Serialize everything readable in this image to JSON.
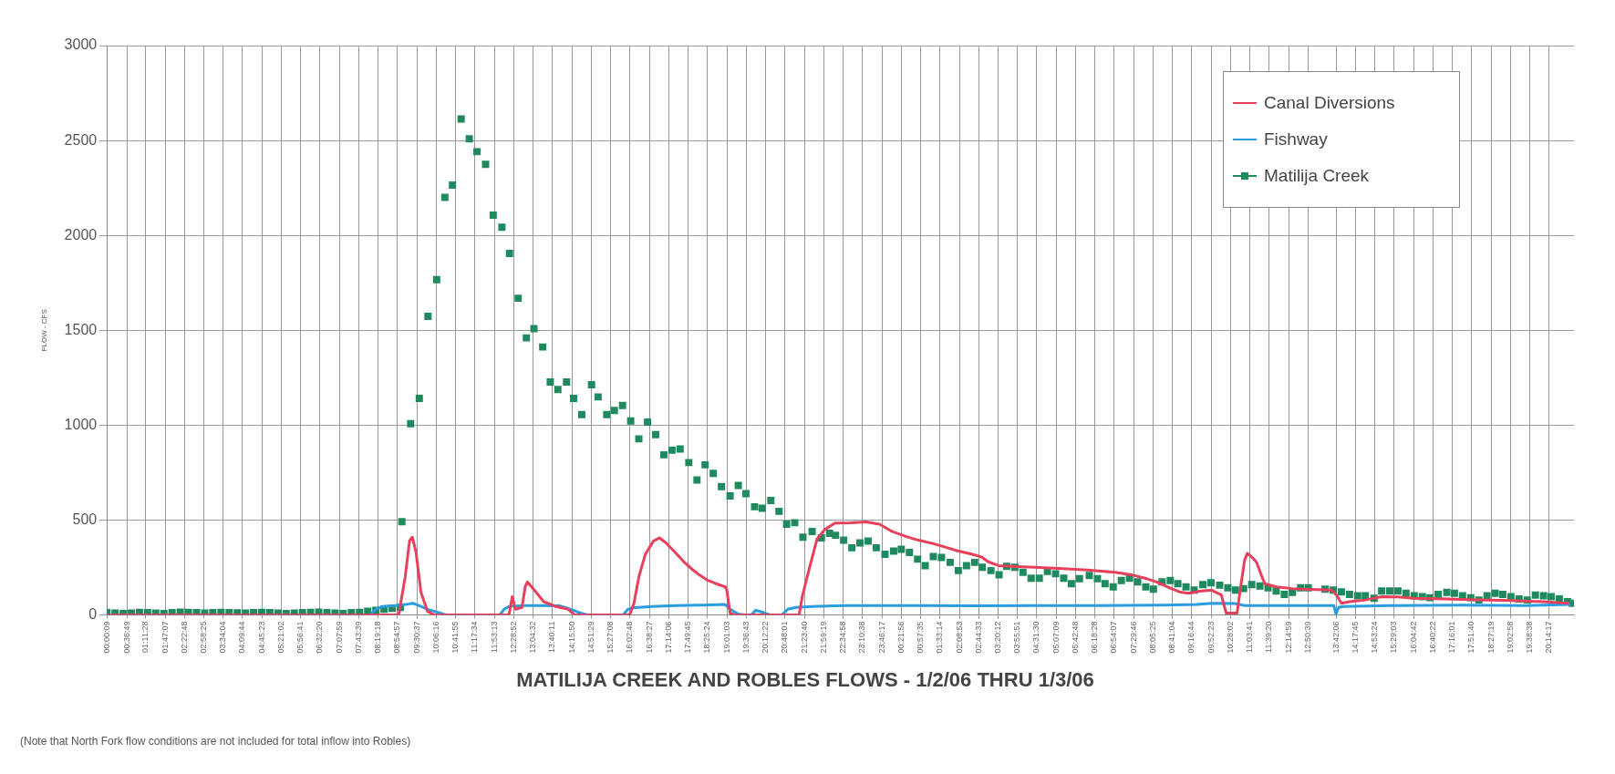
{
  "chart_data": {
    "type": "line",
    "title": "MATILIJA CREEK AND ROBLES FLOWS - 1/2/06 THRU 1/3/06",
    "ylabel": "FLOW - CFS",
    "annotations": [
      "(Note that North Fork flow conditions are not included for total inflow into Robles)"
    ],
    "xlim": [
      "--01-02T00:00",
      "--01-03T21:00"
    ],
    "xticks": [
      {
        "value": "--01-02T00:00:09",
        "label": "00:00:09"
      },
      {
        "value": "--01-02T00:36:49",
        "label": "00:36:49"
      },
      {
        "value": "--01-02T01:11:28",
        "label": "01:11:28"
      },
      {
        "value": "--01-02T01:47:07",
        "label": "01:47:07"
      },
      {
        "value": "--01-02T02:22:48",
        "label": "02:22:48"
      },
      {
        "value": "--01-02T02:58:25",
        "label": "02:58:25"
      },
      {
        "value": "--01-02T03:34:04",
        "label": "03:34:04"
      },
      {
        "value": "--01-02T04:09:44",
        "label": "04:09:44"
      },
      {
        "value": "--01-02T04:45:23",
        "label": "04:45:23"
      },
      {
        "value": "--01-02T05:21:02",
        "label": "05:21:02"
      },
      {
        "value": "--01-02T05:56:41",
        "label": "05:56:41"
      },
      {
        "value": "--01-02T06:32:20",
        "label": "06:32:20"
      },
      {
        "value": "--01-02T07:07:59",
        "label": "07:07:59"
      },
      {
        "value": "--01-02T07:43:39",
        "label": "07:43:39"
      },
      {
        "value": "--01-02T08:19:18",
        "label": "08:19:18"
      },
      {
        "value": "--01-02T08:54:57",
        "label": "08:54:57"
      },
      {
        "value": "--01-02T09:30:37",
        "label": "09:30:37"
      },
      {
        "value": "--01-02T10:06:16",
        "label": "10:06:16"
      },
      {
        "value": "--01-02T10:41:55",
        "label": "10:41:55"
      },
      {
        "value": "--01-02T11:17:34",
        "label": "11:17:34"
      },
      {
        "value": "--01-02T11:53:13",
        "label": "11:53:13"
      },
      {
        "value": "--01-02T12:28:52",
        "label": "12:28:52"
      },
      {
        "value": "--01-02T13:04:32",
        "label": "13:04:32"
      },
      {
        "value": "--01-02T13:40:11",
        "label": "13:40:11"
      },
      {
        "value": "--01-02T14:15:50",
        "label": "14:15:50"
      },
      {
        "value": "--01-02T14:51:29",
        "label": "14:51:29"
      },
      {
        "value": "--01-02T15:27:08",
        "label": "15:27:08"
      },
      {
        "value": "--01-02T16:02:48",
        "label": "16:02:48"
      },
      {
        "value": "--01-02T16:38:27",
        "label": "16:38:27"
      },
      {
        "value": "--01-02T17:14:06",
        "label": "17:14:06"
      },
      {
        "value": "--01-02T17:49:45",
        "label": "17:49:45"
      },
      {
        "value": "--01-02T18:25:24",
        "label": "18:25:24"
      },
      {
        "value": "--01-02T19:01:03",
        "label": "19:01:03"
      },
      {
        "value": "--01-02T19:36:43",
        "label": "19:36:43"
      },
      {
        "value": "--01-02T20:12:22",
        "label": "20:12:22"
      },
      {
        "value": "--01-02T20:48:01",
        "label": "20:48:01"
      },
      {
        "value": "--01-02T21:23:40",
        "label": "21:23:40"
      },
      {
        "value": "--01-02T21:59:19",
        "label": "21:59:19"
      },
      {
        "value": "--01-02T22:34:58",
        "label": "22:34:58"
      },
      {
        "value": "--01-02T23:10:38",
        "label": "23:10:38"
      },
      {
        "value": "--01-02T23:46:17",
        "label": "23:46:17"
      },
      {
        "value": "--01-03T00:21:56",
        "label": "00:21:56"
      },
      {
        "value": "--01-03T00:57:35",
        "label": "00:57:35"
      },
      {
        "value": "--01-03T01:33:14",
        "label": "01:33:14"
      },
      {
        "value": "--01-03T02:08:53",
        "label": "02:08:53"
      },
      {
        "value": "--01-03T02:44:33",
        "label": "02:44:33"
      },
      {
        "value": "--01-03T03:20:12",
        "label": "03:20:12"
      },
      {
        "value": "--01-03T03:55:51",
        "label": "03:55:51"
      },
      {
        "value": "--01-03T04:31:30",
        "label": "04:31:30"
      },
      {
        "value": "--01-03T05:07:09",
        "label": "05:07:09"
      },
      {
        "value": "--01-03T05:42:48",
        "label": "05:42:48"
      },
      {
        "value": "--01-03T06:18:28",
        "label": "06:18:28"
      },
      {
        "value": "--01-03T06:54:07",
        "label": "06:54:07"
      },
      {
        "value": "--01-03T07:29:46",
        "label": "07:29:46"
      },
      {
        "value": "--01-03T08:05:25",
        "label": "08:05:25"
      },
      {
        "value": "--01-03T08:41:04",
        "label": "08:41:04"
      },
      {
        "value": "--01-03T09:16:44",
        "label": "09:16:44"
      },
      {
        "value": "--01-03T09:52:23",
        "label": "09:52:23"
      },
      {
        "value": "--01-03T10:28:02",
        "label": "10:28:02"
      },
      {
        "value": "--01-03T11:03:41",
        "label": "11:03:41"
      },
      {
        "value": "--01-03T11:39:20",
        "label": "11:39:20"
      },
      {
        "value": "--01-03T12:14:59",
        "label": "12:14:59"
      },
      {
        "value": "--01-03T12:50:39",
        "label": "12:50:39"
      },
      {
        "value": "--01-03T13:42:06",
        "label": "13:42:06"
      },
      {
        "value": "--01-03T14:17:45",
        "label": "14:17:45"
      },
      {
        "value": "--01-03T14:53:24",
        "label": "14:53:24"
      },
      {
        "value": "--01-03T15:29:03",
        "label": "15:29:03"
      },
      {
        "value": "--01-03T16:04:42",
        "label": "16:04:42"
      },
      {
        "value": "--01-03T16:40:22",
        "label": "16:40:22"
      },
      {
        "value": "--01-03T17:16:01",
        "label": "17:16:01"
      },
      {
        "value": "--01-03T17:51:40",
        "label": "17:51:40"
      },
      {
        "value": "--01-03T18:27:19",
        "label": "18:27:19"
      },
      {
        "value": "--01-03T19:02:58",
        "label": "19:02:58"
      },
      {
        "value": "--01-03T19:38:38",
        "label": "19:38:38"
      },
      {
        "value": "--01-03T20:14:17",
        "label": "20:14:17"
      }
    ],
    "ylim": [
      0,
      3000
    ],
    "yticks": [
      0,
      500,
      1000,
      1500,
      2000,
      2500,
      3000
    ],
    "grid": true,
    "legend": "top right",
    "marker": "none",
    "series": [
      {
        "name": "Canal Diversions",
        "color": "#e8405a",
        "x": [
          "--01-02T00:00",
          "--01-02T08:57",
          "--01-02T09:09",
          "--01-02T09:17",
          "--01-02T09:22",
          "--01-02T09:29",
          "--01-02T09:38",
          "--01-02T09:50",
          "--01-02T10:02",
          "--01-02T12:20",
          "--01-02T12:26",
          "--01-02T12:32",
          "--01-02T12:44",
          "--01-02T12:50",
          "--01-02T12:54",
          "--01-02T13:07",
          "--01-02T13:24",
          "--01-02T13:46",
          "--01-02T14:09",
          "--01-02T14:21",
          "--01-02T16:02",
          "--01-02T16:10",
          "--01-02T16:19",
          "--01-02T16:31",
          "--01-02T16:46",
          "--01-02T16:57",
          "--01-02T17:09",
          "--01-02T17:26",
          "--01-02T17:42",
          "--01-02T17:56",
          "--01-02T18:11",
          "--01-02T18:26",
          "--01-02T18:41",
          "--01-02T18:58",
          "--01-02T19:01",
          "--01-02T19:07",
          "--01-02T19:16",
          "--01-02T21:14",
          "--01-02T21:20",
          "--01-02T21:32",
          "--01-02T21:47",
          "--01-02T22:01",
          "--01-02T22:20",
          "--01-02T22:48",
          "--01-02T23:17",
          "--01-02T23:42",
          "--01-03T00:05",
          "--01-03T00:29",
          "--01-03T00:52",
          "--01-03T01:17",
          "--01-03T01:40",
          "--01-03T02:04",
          "--01-03T02:33",
          "--01-03T02:50",
          "--01-03T03:02",
          "--01-03T03:21",
          "--01-03T03:55",
          "--01-03T04:28",
          "--01-03T05:12",
          "--01-03T06:05",
          "--01-03T06:55",
          "--01-03T07:28",
          "--01-03T07:54",
          "--01-03T08:12",
          "--01-03T08:38",
          "--01-03T08:56",
          "--01-03T09:11",
          "--01-03T09:31",
          "--01-03T09:53",
          "--01-03T10:11",
          "--01-03T10:20",
          "--01-03T10:40",
          "--01-03T10:47",
          "--01-03T10:54",
          "--01-03T10:59",
          "--01-03T11:09",
          "--01-03T11:16",
          "--01-03T11:26",
          "--01-03T11:31",
          "--01-03T11:52",
          "--01-03T12:22",
          "--01-03T12:52",
          "--01-03T13:34",
          "--01-03T13:43",
          "--01-03T13:52",
          "--01-03T14:07",
          "--01-03T14:36",
          "--01-03T15:06",
          "--01-03T15:35",
          "--01-03T16:06",
          "--01-03T17:06",
          "--01-03T18:05",
          "--01-03T19:04",
          "--01-03T20:04",
          "--01-03T20:51"
        ],
        "values": [
          0,
          0,
          200,
          390,
          410,
          330,
          120,
          20,
          0,
          0,
          96,
          30,
          40,
          150,
          174,
          130,
          70,
          45,
          30,
          0,
          0,
          60,
          200,
          320,
          390,
          406,
          380,
          329,
          280,
          243,
          210,
          182,
          165,
          148,
          130,
          10,
          0,
          0,
          100,
          236,
          401,
          450,
          484,
          485,
          490,
          478,
          440,
          415,
          395,
          379,
          360,
          339,
          320,
          305,
          280,
          260,
          255,
          251,
          245,
          237,
          225,
          210,
          191,
          174,
          140,
          120,
          114,
          125,
          131,
          105,
          10,
          10,
          157,
          290,
          325,
          300,
          277,
          200,
          165,
          148,
          139,
          135,
          131,
          105,
          62,
          70,
          79,
          96,
          95,
          88,
          84,
          79,
          76,
          70,
          62
        ]
      },
      {
        "name": "Fishway",
        "color": "#2a9de0",
        "x": [
          "--01-02T00:00",
          "--01-02T08:04",
          "--01-02T08:15",
          "--01-02T08:27",
          "--01-02T08:51",
          "--01-02T09:09",
          "--01-02T09:23",
          "--01-02T09:38",
          "--01-02T09:50",
          "--01-02T10:08",
          "--01-02T10:25",
          "--01-02T12:03",
          "--01-02T12:11",
          "--01-02T12:20",
          "--01-02T12:47",
          "--01-02T13:16",
          "--01-02T13:52",
          "--01-02T14:09",
          "--01-02T14:27",
          "--01-02T14:45",
          "--01-02T15:50",
          "--01-02T15:59",
          "--01-02T16:07",
          "--01-02T16:43",
          "--01-02T17:30",
          "--01-02T18:17",
          "--01-02T18:58",
          "--01-02T19:07",
          "--01-02T19:22",
          "--01-02T19:34",
          "--01-02T19:46",
          "--01-02T19:54",
          "--01-02T20:06",
          "--01-02T20:21",
          "--01-02T20:42",
          "--01-02T20:53",
          "--01-02T21:08",
          "--01-02T21:38",
          "--01-02T22:37",
          "--01-03T00:35",
          "--01-03T02:33",
          "--01-03T04:31",
          "--01-03T06:29",
          "--01-03T08:27",
          "--01-03T09:26",
          "--01-03T09:55",
          "--01-03T10:36",
          "--01-03T10:54",
          "--01-03T12:23",
          "--01-03T13:38",
          "--01-03T13:42",
          "--01-03T13:47",
          "--01-03T13:55",
          "--01-03T15:35",
          "--01-03T17:33",
          "--01-03T19:31",
          "--01-03T20:54"
        ],
        "values": [
          0,
          0,
          30,
          45,
          50,
          55,
          62,
          45,
          30,
          15,
          0,
          0,
          30,
          45,
          50,
          50,
          48,
          35,
          15,
          0,
          0,
          30,
          38,
          45,
          50,
          52,
          55,
          30,
          5,
          0,
          0,
          25,
          15,
          0,
          0,
          30,
          40,
          45,
          50,
          50,
          48,
          50,
          50,
          52,
          55,
          62,
          60,
          50,
          50,
          50,
          5,
          40,
          45,
          50,
          52,
          50,
          55
        ]
      },
      {
        "name": "Matilija Creek",
        "color": "#1f8a5e",
        "type": "scatter",
        "marker": "square",
        "x": [
          "--01-02T00:00",
          "--01-02T00:15",
          "--01-02T00:30",
          "--01-02T00:45",
          "--01-02T01:00",
          "--01-02T01:15",
          "--01-02T01:30",
          "--01-02T01:45",
          "--01-02T02:00",
          "--01-02T02:15",
          "--01-02T02:30",
          "--01-02T02:45",
          "--01-02T03:00",
          "--01-02T03:15",
          "--01-02T03:30",
          "--01-02T03:45",
          "--01-02T04:00",
          "--01-02T04:15",
          "--01-02T04:30",
          "--01-02T04:45",
          "--01-02T05:00",
          "--01-02T05:15",
          "--01-02T05:30",
          "--01-02T05:45",
          "--01-02T06:00",
          "--01-02T06:15",
          "--01-02T06:30",
          "--01-02T06:45",
          "--01-02T07:00",
          "--01-02T07:15",
          "--01-02T07:30",
          "--01-02T07:45",
          "--01-02T08:00",
          "--01-02T08:15",
          "--01-02T08:30",
          "--01-02T08:45",
          "--01-02T09:00",
          "--01-02T09:03",
          "--01-02T09:19",
          "--01-02T09:35",
          "--01-02T09:51",
          "--01-02T10:07",
          "--01-02T10:22",
          "--01-02T10:36",
          "--01-02T10:52",
          "--01-02T11:07",
          "--01-02T11:21",
          "--01-02T11:37",
          "--01-02T11:51",
          "--01-02T12:07",
          "--01-02T12:21",
          "--01-02T12:37",
          "--01-02T12:52",
          "--01-02T13:06",
          "--01-02T13:22",
          "--01-02T13:36",
          "--01-02T13:50",
          "--01-02T14:06",
          "--01-02T14:19",
          "--01-02T14:34",
          "--01-02T14:52",
          "--01-02T15:04",
          "--01-02T15:20",
          "--01-02T15:34",
          "--01-02T15:49",
          "--01-02T16:04",
          "--01-02T16:19",
          "--01-02T16:35",
          "--01-02T16:50",
          "--01-02T17:05",
          "--01-02T17:20",
          "--01-02T17:35",
          "--01-02T17:51",
          "--01-02T18:06",
          "--01-02T18:21",
          "--01-02T18:36",
          "--01-02T18:51",
          "--01-02T19:07",
          "--01-02T19:22",
          "--01-02T19:36",
          "--01-02T19:52",
          "--01-02T20:06",
          "--01-02T20:22",
          "--01-02T20:37",
          "--01-02T20:51",
          "--01-02T21:06",
          "--01-02T21:21",
          "--01-02T21:38",
          "--01-02T21:55",
          "--01-02T22:10",
          "--01-02T22:21",
          "--01-02T22:36",
          "--01-02T22:51",
          "--01-02T23:06",
          "--01-02T23:21",
          "--01-02T23:36",
          "--01-02T23:52",
          "--01-03T00:08",
          "--01-03T00:22",
          "--01-03T00:37",
          "--01-03T00:52",
          "--01-03T01:06",
          "--01-03T01:21",
          "--01-03T01:36",
          "--01-03T01:52",
          "--01-03T02:07",
          "--01-03T02:22",
          "--01-03T02:37",
          "--01-03T02:51",
          "--01-03T03:07",
          "--01-03T03:22",
          "--01-03T03:36",
          "--01-03T03:51",
          "--01-03T04:06",
          "--01-03T04:21",
          "--01-03T04:36",
          "--01-03T04:51",
          "--01-03T05:06",
          "--01-03T05:21",
          "--01-03T05:35",
          "--01-03T05:50",
          "--01-03T06:08",
          "--01-03T06:23",
          "--01-03T06:37",
          "--01-03T06:52",
          "--01-03T07:07",
          "--01-03T07:22",
          "--01-03T07:37",
          "--01-03T07:52",
          "--01-03T08:06",
          "--01-03T08:22",
          "--01-03T08:37",
          "--01-03T08:51",
          "--01-03T09:06",
          "--01-03T09:21",
          "--01-03T09:37",
          "--01-03T09:52",
          "--01-03T10:08",
          "--01-03T10:23",
          "--01-03T10:37",
          "--01-03T10:52",
          "--01-03T11:07",
          "--01-03T11:22",
          "--01-03T11:37",
          "--01-03T11:52",
          "--01-03T12:07",
          "--01-03T12:22",
          "--01-03T12:37",
          "--01-03T12:51",
          "--01-03T13:22",
          "--01-03T13:37",
          "--01-03T13:52",
          "--01-03T14:07",
          "--01-03T14:22",
          "--01-03T14:36",
          "--01-03T14:52",
          "--01-03T15:06",
          "--01-03T15:21",
          "--01-03T15:36",
          "--01-03T15:51",
          "--01-03T16:06",
          "--01-03T16:21",
          "--01-03T16:35",
          "--01-03T16:50",
          "--01-03T17:06",
          "--01-03T17:20",
          "--01-03T17:35",
          "--01-03T17:50",
          "--01-03T18:05",
          "--01-03T18:20",
          "--01-03T18:35",
          "--01-03T18:49",
          "--01-03T19:04",
          "--01-03T19:19",
          "--01-03T19:34",
          "--01-03T19:49",
          "--01-03T20:04",
          "--01-03T20:18",
          "--01-03T20:33",
          "--01-03T20:48",
          "--01-03T20:57"
        ],
        "values": [
          12,
          10,
          8,
          10,
          14,
          12,
          10,
          8,
          12,
          15,
          14,
          12,
          10,
          12,
          14,
          13,
          11,
          10,
          12,
          14,
          12,
          10,
          8,
          10,
          12,
          14,
          15,
          13,
          10,
          8,
          12,
          14,
          20,
          25,
          30,
          35,
          40,
          491,
          1008,
          1141,
          1573,
          1767,
          2200,
          2265,
          2613,
          2509,
          2441,
          2374,
          2107,
          2043,
          1905,
          1669,
          1460,
          1509,
          1412,
          1228,
          1188,
          1228,
          1141,
          1056,
          1213,
          1149,
          1056,
          1077,
          1104,
          1022,
          928,
          1016,
          950,
          844,
          868,
          875,
          803,
          711,
          791,
          746,
          676,
          627,
          682,
          639,
          570,
          562,
          603,
          546,
          478,
          486,
          410,
          440,
          406,
          430,
          420,
          394,
          354,
          380,
          389,
          354,
          320,
          337,
          346,
          329,
          294,
          260,
          308,
          303,
          277,
          234,
          260,
          277,
          251,
          234,
          212,
          256,
          251,
          225,
          194,
          194,
          229,
          217,
          194,
          165,
          191,
          208,
          191,
          165,
          148,
          182,
          194,
          174,
          148,
          136,
          174,
          182,
          165,
          148,
          131,
          160,
          170,
          157,
          143,
          131,
          139,
          160,
          153,
          143,
          126,
          108,
          119,
          143,
          143,
          136,
          131,
          122,
          108,
          101,
          101,
          88,
          126,
          126,
          126,
          114,
          101,
          96,
          91,
          108,
          119,
          114,
          101,
          91,
          79,
          101,
          114,
          108,
          96,
          84,
          79,
          105,
          101,
          96,
          84,
          70,
          62
        ]
      }
    ]
  }
}
